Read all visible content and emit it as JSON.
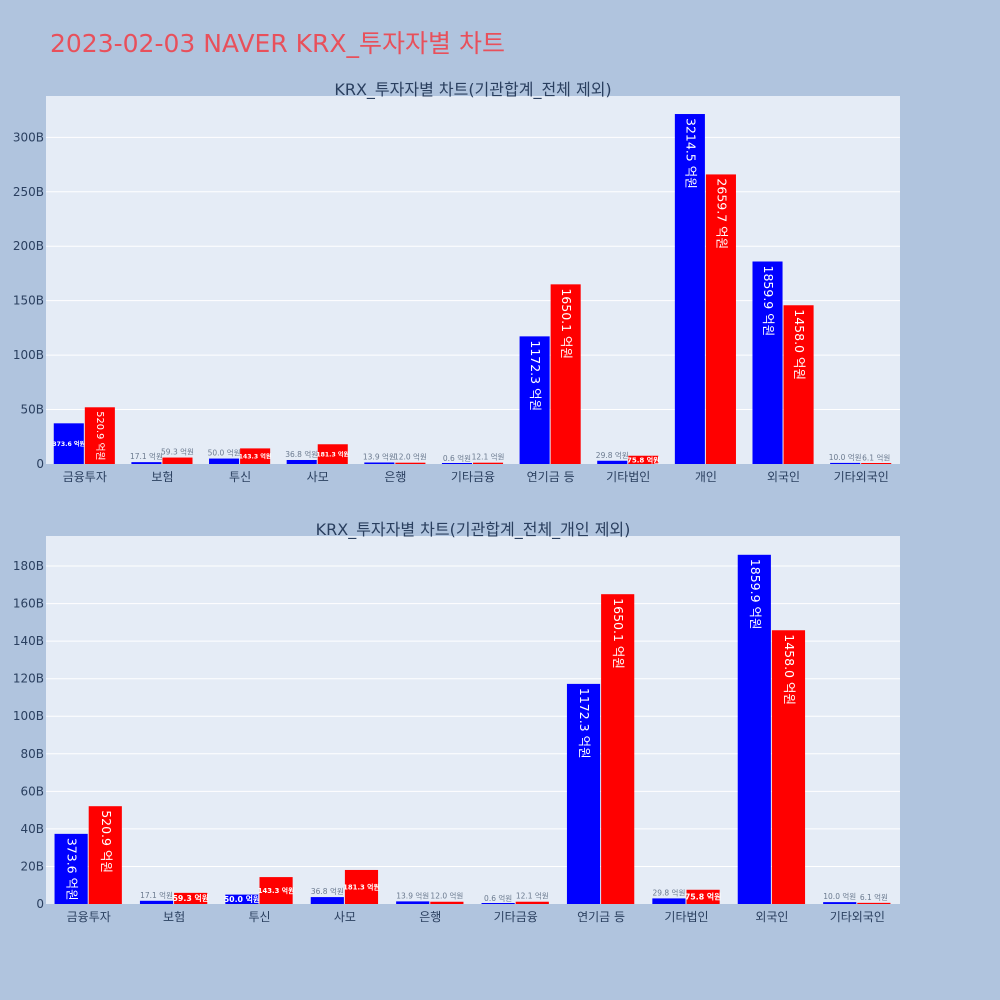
{
  "page": {
    "title": "2023-02-03 NAVER KRX_투자자별 차트"
  },
  "colors": {
    "background": "#b0c4de",
    "plot_bg": "#e5ecf6",
    "title": "#e8505b",
    "series1": "#0000ff",
    "series2": "#ff0000"
  },
  "chart_data": [
    {
      "type": "bar",
      "title": "KRX_투자자별 차트(기관합계_전체 제외)",
      "categories": [
        "금융투자",
        "보험",
        "투신",
        "사모",
        "은행",
        "기타금융",
        "연기금 등",
        "기타법인",
        "개인",
        "외국인",
        "기타외국인"
      ],
      "series": [
        {
          "values": [
            37.36,
            1.71,
            5.0,
            3.68,
            1.39,
            0.06,
            117.23,
            2.98,
            321.45,
            185.99,
            1.0
          ],
          "labels": [
            "373.6 억원",
            "17.1 억원",
            "50.0 억원",
            "36.8 억원",
            "13.9 억원",
            "0.6 억원",
            "1172.3 억원",
            "29.8 억원",
            "3214.5 억원",
            "1859.9 억원",
            "10.0 억원"
          ]
        },
        {
          "values": [
            52.09,
            5.93,
            14.33,
            18.13,
            1.2,
            1.21,
            165.01,
            7.58,
            265.97,
            145.8,
            0.61
          ],
          "labels": [
            "520.9 억원",
            "59.3 억원",
            "143.3 억원",
            "181.3 억원",
            "12.0 억원",
            "12.1 억원",
            "1650.1 억원",
            "75.8 억원",
            "2659.7 억원",
            "1458.0 억원",
            "6.1 억원"
          ]
        }
      ],
      "yticks": [
        0,
        50,
        100,
        150,
        200,
        250,
        300
      ],
      "ytick_labels": [
        "0",
        "50B",
        "100B",
        "150B",
        "200B",
        "250B",
        "300B"
      ],
      "ylim": [
        0,
        338
      ],
      "grid": true
    },
    {
      "type": "bar",
      "title": "KRX_투자자별 차트(기관합계_전체_개인 제외)",
      "categories": [
        "금융투자",
        "보험",
        "투신",
        "사모",
        "은행",
        "기타금융",
        "연기금 등",
        "기타법인",
        "외국인",
        "기타외국인"
      ],
      "series": [
        {
          "values": [
            37.36,
            1.71,
            5.0,
            3.68,
            1.39,
            0.06,
            117.23,
            2.98,
            185.99,
            1.0
          ],
          "labels": [
            "373.6 억원",
            "17.1 억원",
            "50.0 억원",
            "36.8 억원",
            "13.9 억원",
            "0.6 억원",
            "1172.3 억원",
            "29.8 억원",
            "1859.9 억원",
            "10.0 억원"
          ]
        },
        {
          "values": [
            52.09,
            5.93,
            14.33,
            18.13,
            1.2,
            1.21,
            165.01,
            7.58,
            145.8,
            0.61
          ],
          "labels": [
            "520.9 억원",
            "59.3 억원",
            "143.3 억원",
            "181.3 억원",
            "12.0 억원",
            "12.1 억원",
            "1650.1 억원",
            "75.8 억원",
            "1458.0 억원",
            "6.1 억원"
          ]
        }
      ],
      "yticks": [
        0,
        20,
        40,
        60,
        80,
        100,
        120,
        140,
        160,
        180
      ],
      "ytick_labels": [
        "0",
        "20B",
        "40B",
        "60B",
        "80B",
        "100B",
        "120B",
        "140B",
        "160B",
        "180B"
      ],
      "ylim": [
        0,
        196
      ],
      "grid": true
    }
  ]
}
